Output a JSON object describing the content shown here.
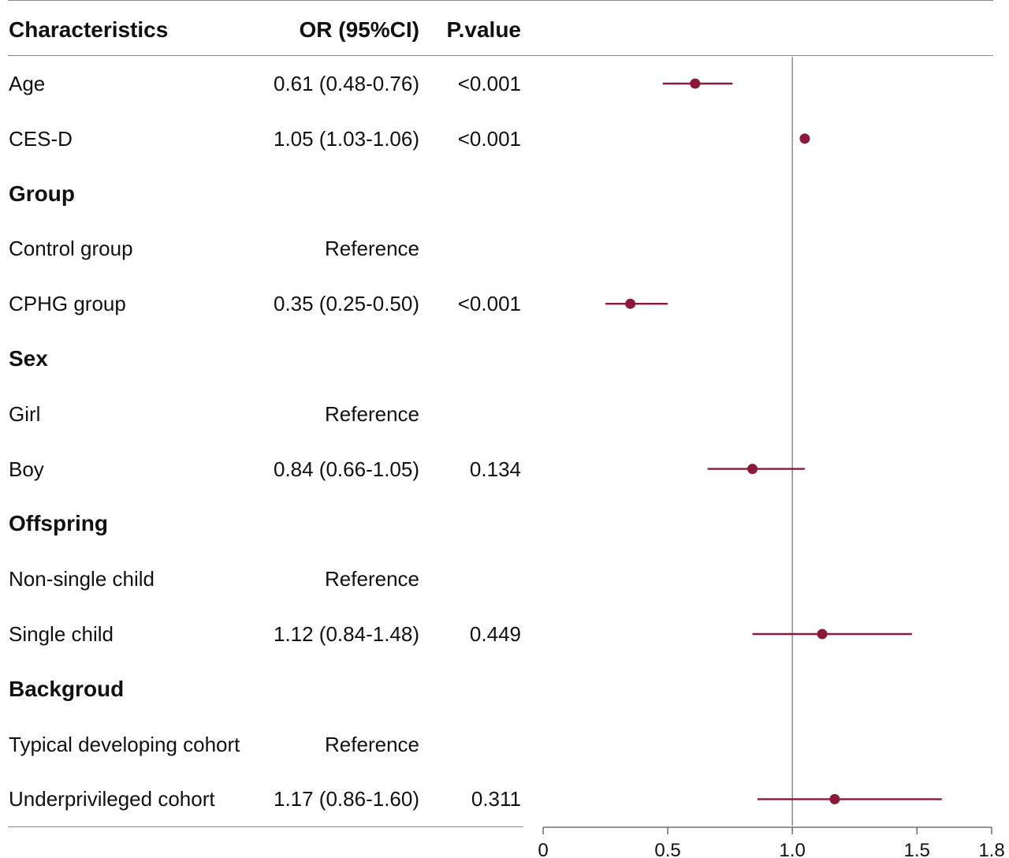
{
  "table": {
    "headers": {
      "characteristics": "Characteristics",
      "or": "OR (95%CI)",
      "pvalue": "P.value"
    },
    "rows": [
      {
        "label": "Age",
        "or": "0.61 (0.48-0.76)",
        "p": "<0.001",
        "kind": "item"
      },
      {
        "label": "CES-D",
        "or": "1.05 (1.03-1.06)",
        "p": "<0.001",
        "kind": "item"
      },
      {
        "label": "Group",
        "or": "",
        "p": "",
        "kind": "group"
      },
      {
        "label": "Control group",
        "or": "Reference",
        "p": "",
        "kind": "item"
      },
      {
        "label": "CPHG group",
        "or": "0.35 (0.25-0.50)",
        "p": "<0.001",
        "kind": "item"
      },
      {
        "label": "Sex",
        "or": "",
        "p": "",
        "kind": "group"
      },
      {
        "label": "Girl",
        "or": "Reference",
        "p": "",
        "kind": "item"
      },
      {
        "label": "Boy",
        "or": "0.84 (0.66-1.05)",
        "p": "0.134",
        "kind": "item"
      },
      {
        "label": "Offspring",
        "or": "",
        "p": "",
        "kind": "group"
      },
      {
        "label": "Non-single child",
        "or": "Reference",
        "p": "",
        "kind": "item"
      },
      {
        "label": "Single child",
        "or": "1.12 (0.84-1.48)",
        "p": "0.449",
        "kind": "item"
      },
      {
        "label": "Backgroud",
        "or": "",
        "p": "",
        "kind": "group"
      },
      {
        "label": "Typical developing cohort",
        "or": "Reference",
        "p": "",
        "kind": "item"
      },
      {
        "label": "Underprivileged cohort",
        "or": "1.17 (0.86-1.60)",
        "p": "0.311",
        "kind": "item"
      }
    ]
  },
  "chart_data": {
    "type": "forest",
    "x_tick_labels": [
      "0",
      "0.5",
      "1.0",
      "1.5",
      "1.8"
    ],
    "x_ticks": [
      0,
      0.5,
      1.0,
      1.5,
      1.8
    ],
    "xlim": [
      0,
      1.8
    ],
    "reference_line": 1.0,
    "point_color": "#8b1a3a",
    "points": [
      {
        "row": 0,
        "or": 0.61,
        "lo": 0.48,
        "hi": 0.76
      },
      {
        "row": 1,
        "or": 1.05,
        "lo": 1.03,
        "hi": 1.06
      },
      {
        "row": 4,
        "or": 0.35,
        "lo": 0.25,
        "hi": 0.5
      },
      {
        "row": 7,
        "or": 0.84,
        "lo": 0.66,
        "hi": 1.05
      },
      {
        "row": 10,
        "or": 1.12,
        "lo": 0.84,
        "hi": 1.48
      },
      {
        "row": 13,
        "or": 1.17,
        "lo": 0.86,
        "hi": 1.6
      }
    ]
  }
}
